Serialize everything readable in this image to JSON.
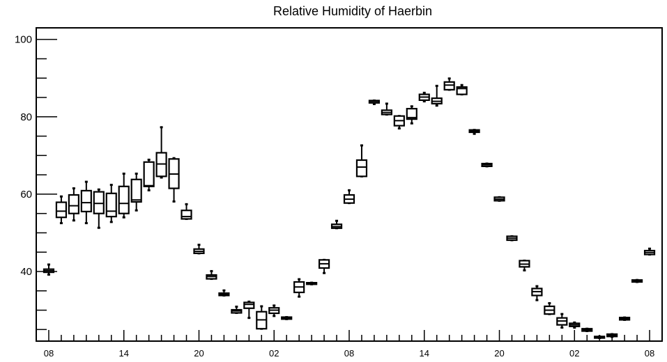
{
  "chart_data": {
    "type": "boxplot",
    "title": "Relative Humidity of Haerbin",
    "xlabel": "",
    "ylabel": "",
    "ylim": [
      22,
      103
    ],
    "y_ticks": [
      40,
      60,
      80,
      100
    ],
    "x_tick_labels": [
      "08",
      "14",
      "20",
      "02",
      "08",
      "14",
      "20",
      "02",
      "08"
    ],
    "x_tick_hours": [
      0,
      6,
      12,
      18,
      24,
      30,
      36,
      42,
      48
    ],
    "x_range": [
      -1,
      49
    ],
    "grid": false,
    "boxes": [
      {
        "hour": 0,
        "whisker_low": 39.2,
        "q1": 39.8,
        "median": 40.2,
        "q3": 40.6,
        "whisker_high": 41.8
      },
      {
        "hour": 1,
        "whisker_low": 52.5,
        "q1": 54.0,
        "median": 55.6,
        "q3": 57.9,
        "whisker_high": 59.4
      },
      {
        "hour": 2,
        "whisker_low": 53.2,
        "q1": 55.0,
        "median": 57.0,
        "q3": 59.8,
        "whisker_high": 61.5
      },
      {
        "hour": 3,
        "whisker_low": 52.5,
        "q1": 55.5,
        "median": 57.8,
        "q3": 60.9,
        "whisker_high": 63.2
      },
      {
        "hour": 4,
        "whisker_low": 51.3,
        "q1": 55.0,
        "median": 57.6,
        "q3": 60.6,
        "whisker_high": 61.2
      },
      {
        "hour": 5,
        "whisker_low": 52.8,
        "q1": 54.2,
        "median": 55.6,
        "q3": 60.2,
        "whisker_high": 62.4
      },
      {
        "hour": 6,
        "whisker_low": 54.0,
        "q1": 55.0,
        "median": 57.6,
        "q3": 62.0,
        "whisker_high": 65.3
      },
      {
        "hour": 7,
        "whisker_low": 55.8,
        "q1": 58.0,
        "median": 58.5,
        "q3": 63.8,
        "whisker_high": 65.3
      },
      {
        "hour": 8,
        "whisker_low": 61.0,
        "q1": 62.0,
        "median": 62.2,
        "q3": 68.3,
        "whisker_high": 68.9
      },
      {
        "hour": 9,
        "whisker_low": 64.3,
        "q1": 64.6,
        "median": 67.8,
        "q3": 70.7,
        "whisker_high": 77.3
      },
      {
        "hour": 10,
        "whisker_low": 58.1,
        "q1": 61.5,
        "median": 65.2,
        "q3": 69.1,
        "whisker_high": 69.3
      },
      {
        "hour": 11,
        "whisker_low": 53.6,
        "q1": 53.6,
        "median": 54.2,
        "q3": 55.8,
        "whisker_high": 57.4
      },
      {
        "hour": 12,
        "whisker_low": 44.7,
        "q1": 44.7,
        "median": 45.2,
        "q3": 45.8,
        "whisker_high": 46.9
      },
      {
        "hour": 13,
        "whisker_low": 38.1,
        "q1": 38.1,
        "median": 38.7,
        "q3": 39.1,
        "whisker_high": 40.1
      },
      {
        "hour": 14,
        "whisker_low": 33.8,
        "q1": 33.8,
        "median": 34.1,
        "q3": 34.4,
        "whisker_high": 35.1
      },
      {
        "hour": 15,
        "whisker_low": 29.3,
        "q1": 29.3,
        "median": 29.8,
        "q3": 30.1,
        "whisker_high": 30.9
      },
      {
        "hour": 16,
        "whisker_low": 28.0,
        "q1": 30.5,
        "median": 31.5,
        "q3": 32.0,
        "whisker_high": 32.2
      },
      {
        "hour": 17,
        "whisker_low": 25.2,
        "q1": 25.2,
        "median": 27.5,
        "q3": 29.6,
        "whisker_high": 31.0
      },
      {
        "hour": 18,
        "whisker_low": 28.5,
        "q1": 29.2,
        "median": 30.0,
        "q3": 30.6,
        "whisker_high": 31.2
      },
      {
        "hour": 19,
        "whisker_low": 27.7,
        "q1": 27.7,
        "median": 28.0,
        "q3": 28.2,
        "whisker_high": 28.2
      },
      {
        "hour": 20,
        "whisker_low": 33.5,
        "q1": 34.6,
        "median": 36.0,
        "q3": 37.3,
        "whisker_high": 38.0
      },
      {
        "hour": 21,
        "whisker_low": 36.7,
        "q1": 36.7,
        "median": 36.9,
        "q3": 37.1,
        "whisker_high": 37.1
      },
      {
        "hour": 22,
        "whisker_low": 39.6,
        "q1": 40.9,
        "median": 42.0,
        "q3": 43.0,
        "whisker_high": 43.0
      },
      {
        "hour": 23,
        "whisker_low": 51.2,
        "q1": 51.2,
        "median": 51.6,
        "q3": 52.2,
        "whisker_high": 53.1
      },
      {
        "hour": 24,
        "whisker_low": 57.7,
        "q1": 57.7,
        "median": 58.7,
        "q3": 59.8,
        "whisker_high": 61.0
      },
      {
        "hour": 25,
        "whisker_low": 64.6,
        "q1": 64.6,
        "median": 67.0,
        "q3": 68.8,
        "whisker_high": 72.6
      },
      {
        "hour": 26,
        "whisker_low": 83.3,
        "q1": 83.6,
        "median": 84.0,
        "q3": 84.2,
        "whisker_high": 84.2
      },
      {
        "hour": 27,
        "whisker_low": 80.6,
        "q1": 80.6,
        "median": 81.1,
        "q3": 81.7,
        "whisker_high": 83.4
      },
      {
        "hour": 28,
        "whisker_low": 77.0,
        "q1": 77.7,
        "median": 79.0,
        "q3": 80.2,
        "whisker_high": 80.2
      },
      {
        "hour": 29,
        "whisker_low": 78.3,
        "q1": 79.4,
        "median": 79.8,
        "q3": 82.1,
        "whisker_high": 82.7
      },
      {
        "hour": 30,
        "whisker_low": 84.0,
        "q1": 84.3,
        "median": 85.1,
        "q3": 85.8,
        "whisker_high": 86.2
      },
      {
        "hour": 31,
        "whisker_low": 82.9,
        "q1": 83.4,
        "median": 84.0,
        "q3": 84.8,
        "whisker_high": 88.0
      },
      {
        "hour": 32,
        "whisker_low": 87.0,
        "q1": 87.0,
        "median": 88.2,
        "q3": 89.0,
        "whisker_high": 89.9
      },
      {
        "hour": 33,
        "whisker_low": 85.8,
        "q1": 85.8,
        "median": 87.3,
        "q3": 87.7,
        "whisker_high": 88.2
      },
      {
        "hour": 34,
        "whisker_low": 75.6,
        "q1": 76.0,
        "median": 76.3,
        "q3": 76.6,
        "whisker_high": 76.6
      },
      {
        "hour": 35,
        "whisker_low": 67.2,
        "q1": 67.2,
        "median": 67.6,
        "q3": 67.9,
        "whisker_high": 67.9
      },
      {
        "hour": 36,
        "whisker_low": 58.3,
        "q1": 58.3,
        "median": 58.7,
        "q3": 59.2,
        "whisker_high": 59.2
      },
      {
        "hour": 37,
        "whisker_low": 48.1,
        "q1": 48.1,
        "median": 48.6,
        "q3": 49.1,
        "whisker_high": 49.1
      },
      {
        "hour": 38,
        "whisker_low": 40.3,
        "q1": 41.2,
        "median": 41.9,
        "q3": 42.8,
        "whisker_high": 42.8
      },
      {
        "hour": 39,
        "whisker_low": 32.6,
        "q1": 33.8,
        "median": 34.8,
        "q3": 35.6,
        "whisker_high": 36.2
      },
      {
        "hour": 40,
        "whisker_low": 29.0,
        "q1": 29.0,
        "median": 30.0,
        "q3": 31.0,
        "whisker_high": 31.8
      },
      {
        "hour": 41,
        "whisker_low": 25.5,
        "q1": 26.2,
        "median": 27.2,
        "q3": 28.0,
        "whisker_high": 29.0
      },
      {
        "hour": 42,
        "whisker_low": 25.5,
        "q1": 25.8,
        "median": 26.2,
        "q3": 26.6,
        "whisker_high": 26.8
      },
      {
        "hour": 43,
        "whisker_low": 24.6,
        "q1": 24.6,
        "median": 24.9,
        "q3": 25.2,
        "whisker_high": 25.2
      },
      {
        "hour": 44,
        "whisker_low": 22.8,
        "q1": 22.8,
        "median": 23.0,
        "q3": 23.2,
        "whisker_high": 23.2
      },
      {
        "hour": 45,
        "whisker_low": 23.1,
        "q1": 23.2,
        "median": 23.5,
        "q3": 23.8,
        "whisker_high": 23.8
      },
      {
        "hour": 46,
        "whisker_low": 27.5,
        "q1": 27.5,
        "median": 27.8,
        "q3": 28.1,
        "whisker_high": 28.1
      },
      {
        "hour": 47,
        "whisker_low": 37.3,
        "q1": 37.3,
        "median": 37.6,
        "q3": 37.8,
        "whisker_high": 37.8
      },
      {
        "hour": 48,
        "whisker_low": 44.4,
        "q1": 44.4,
        "median": 44.9,
        "q3": 45.4,
        "whisker_high": 45.9
      }
    ]
  }
}
